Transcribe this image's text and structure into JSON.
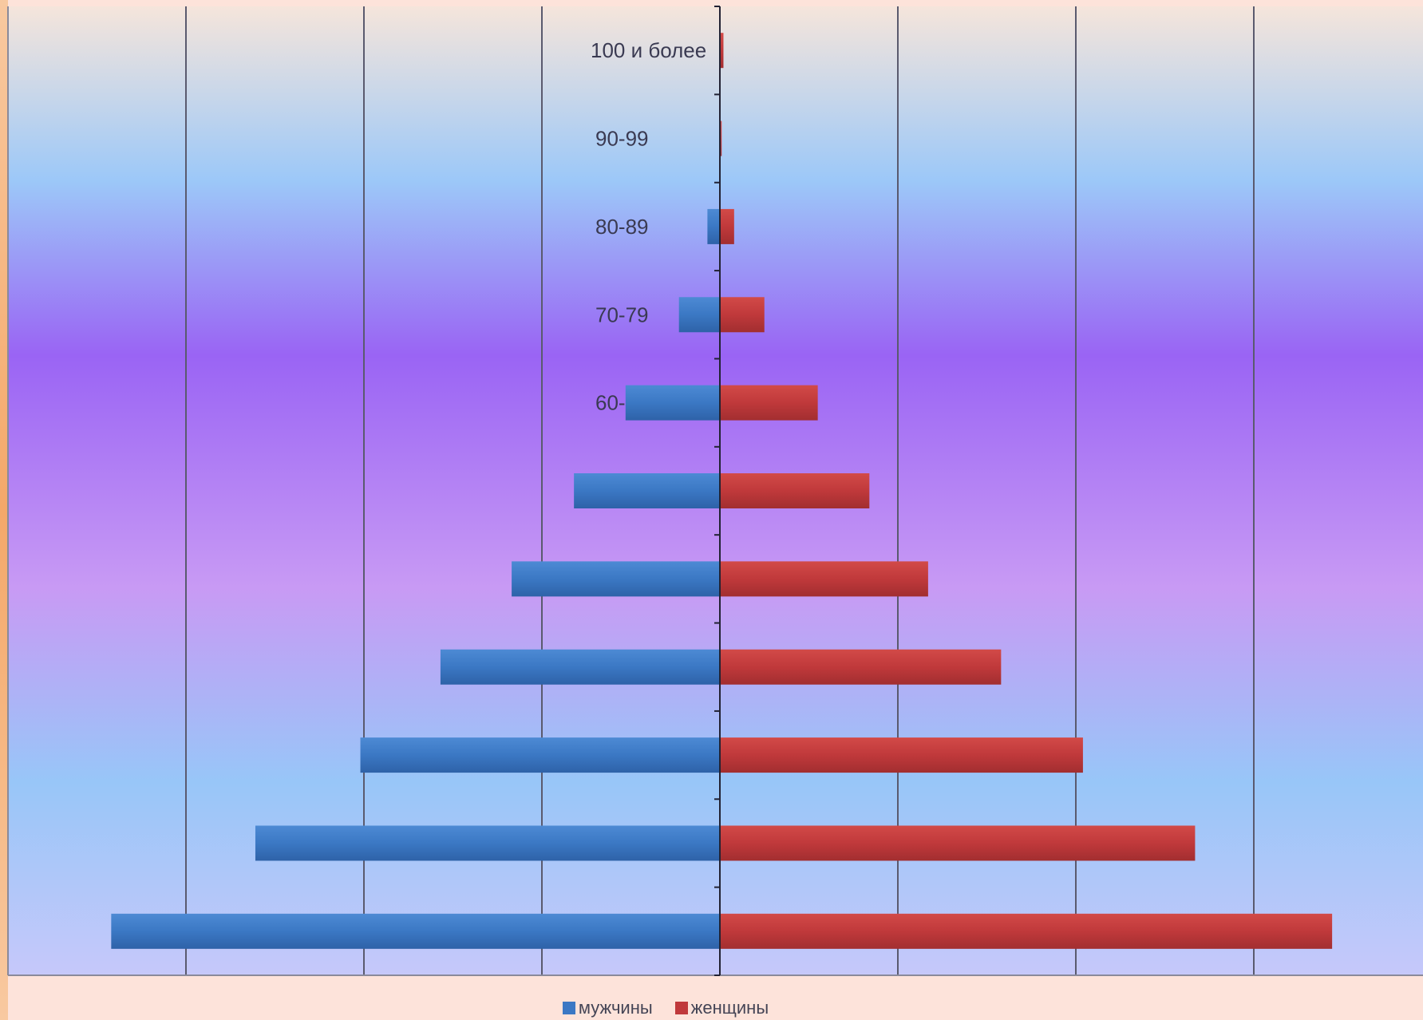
{
  "chart_data": {
    "type": "bar",
    "orientation": "horizontal",
    "layout": "population-pyramid",
    "categories": [
      "",
      "",
      "",
      "",
      "",
      "",
      "60-",
      "70-79",
      "80-89",
      "90-99",
      "100 и более"
    ],
    "series": [
      {
        "name": "мужчины",
        "color": "#3b78c4",
        "values": [
          3.42,
          2.61,
          2.02,
          1.57,
          1.17,
          0.82,
          0.53,
          0.23,
          0.07,
          0.0,
          0.0
        ]
      },
      {
        "name": "женщины",
        "color": "#c0393b",
        "values": [
          3.44,
          2.67,
          2.04,
          1.58,
          1.17,
          0.84,
          0.55,
          0.25,
          0.08,
          0.01,
          0.02
        ]
      }
    ],
    "xlim": [
      -4,
      4
    ],
    "grid": true,
    "legend_position": "bottom-center"
  }
}
